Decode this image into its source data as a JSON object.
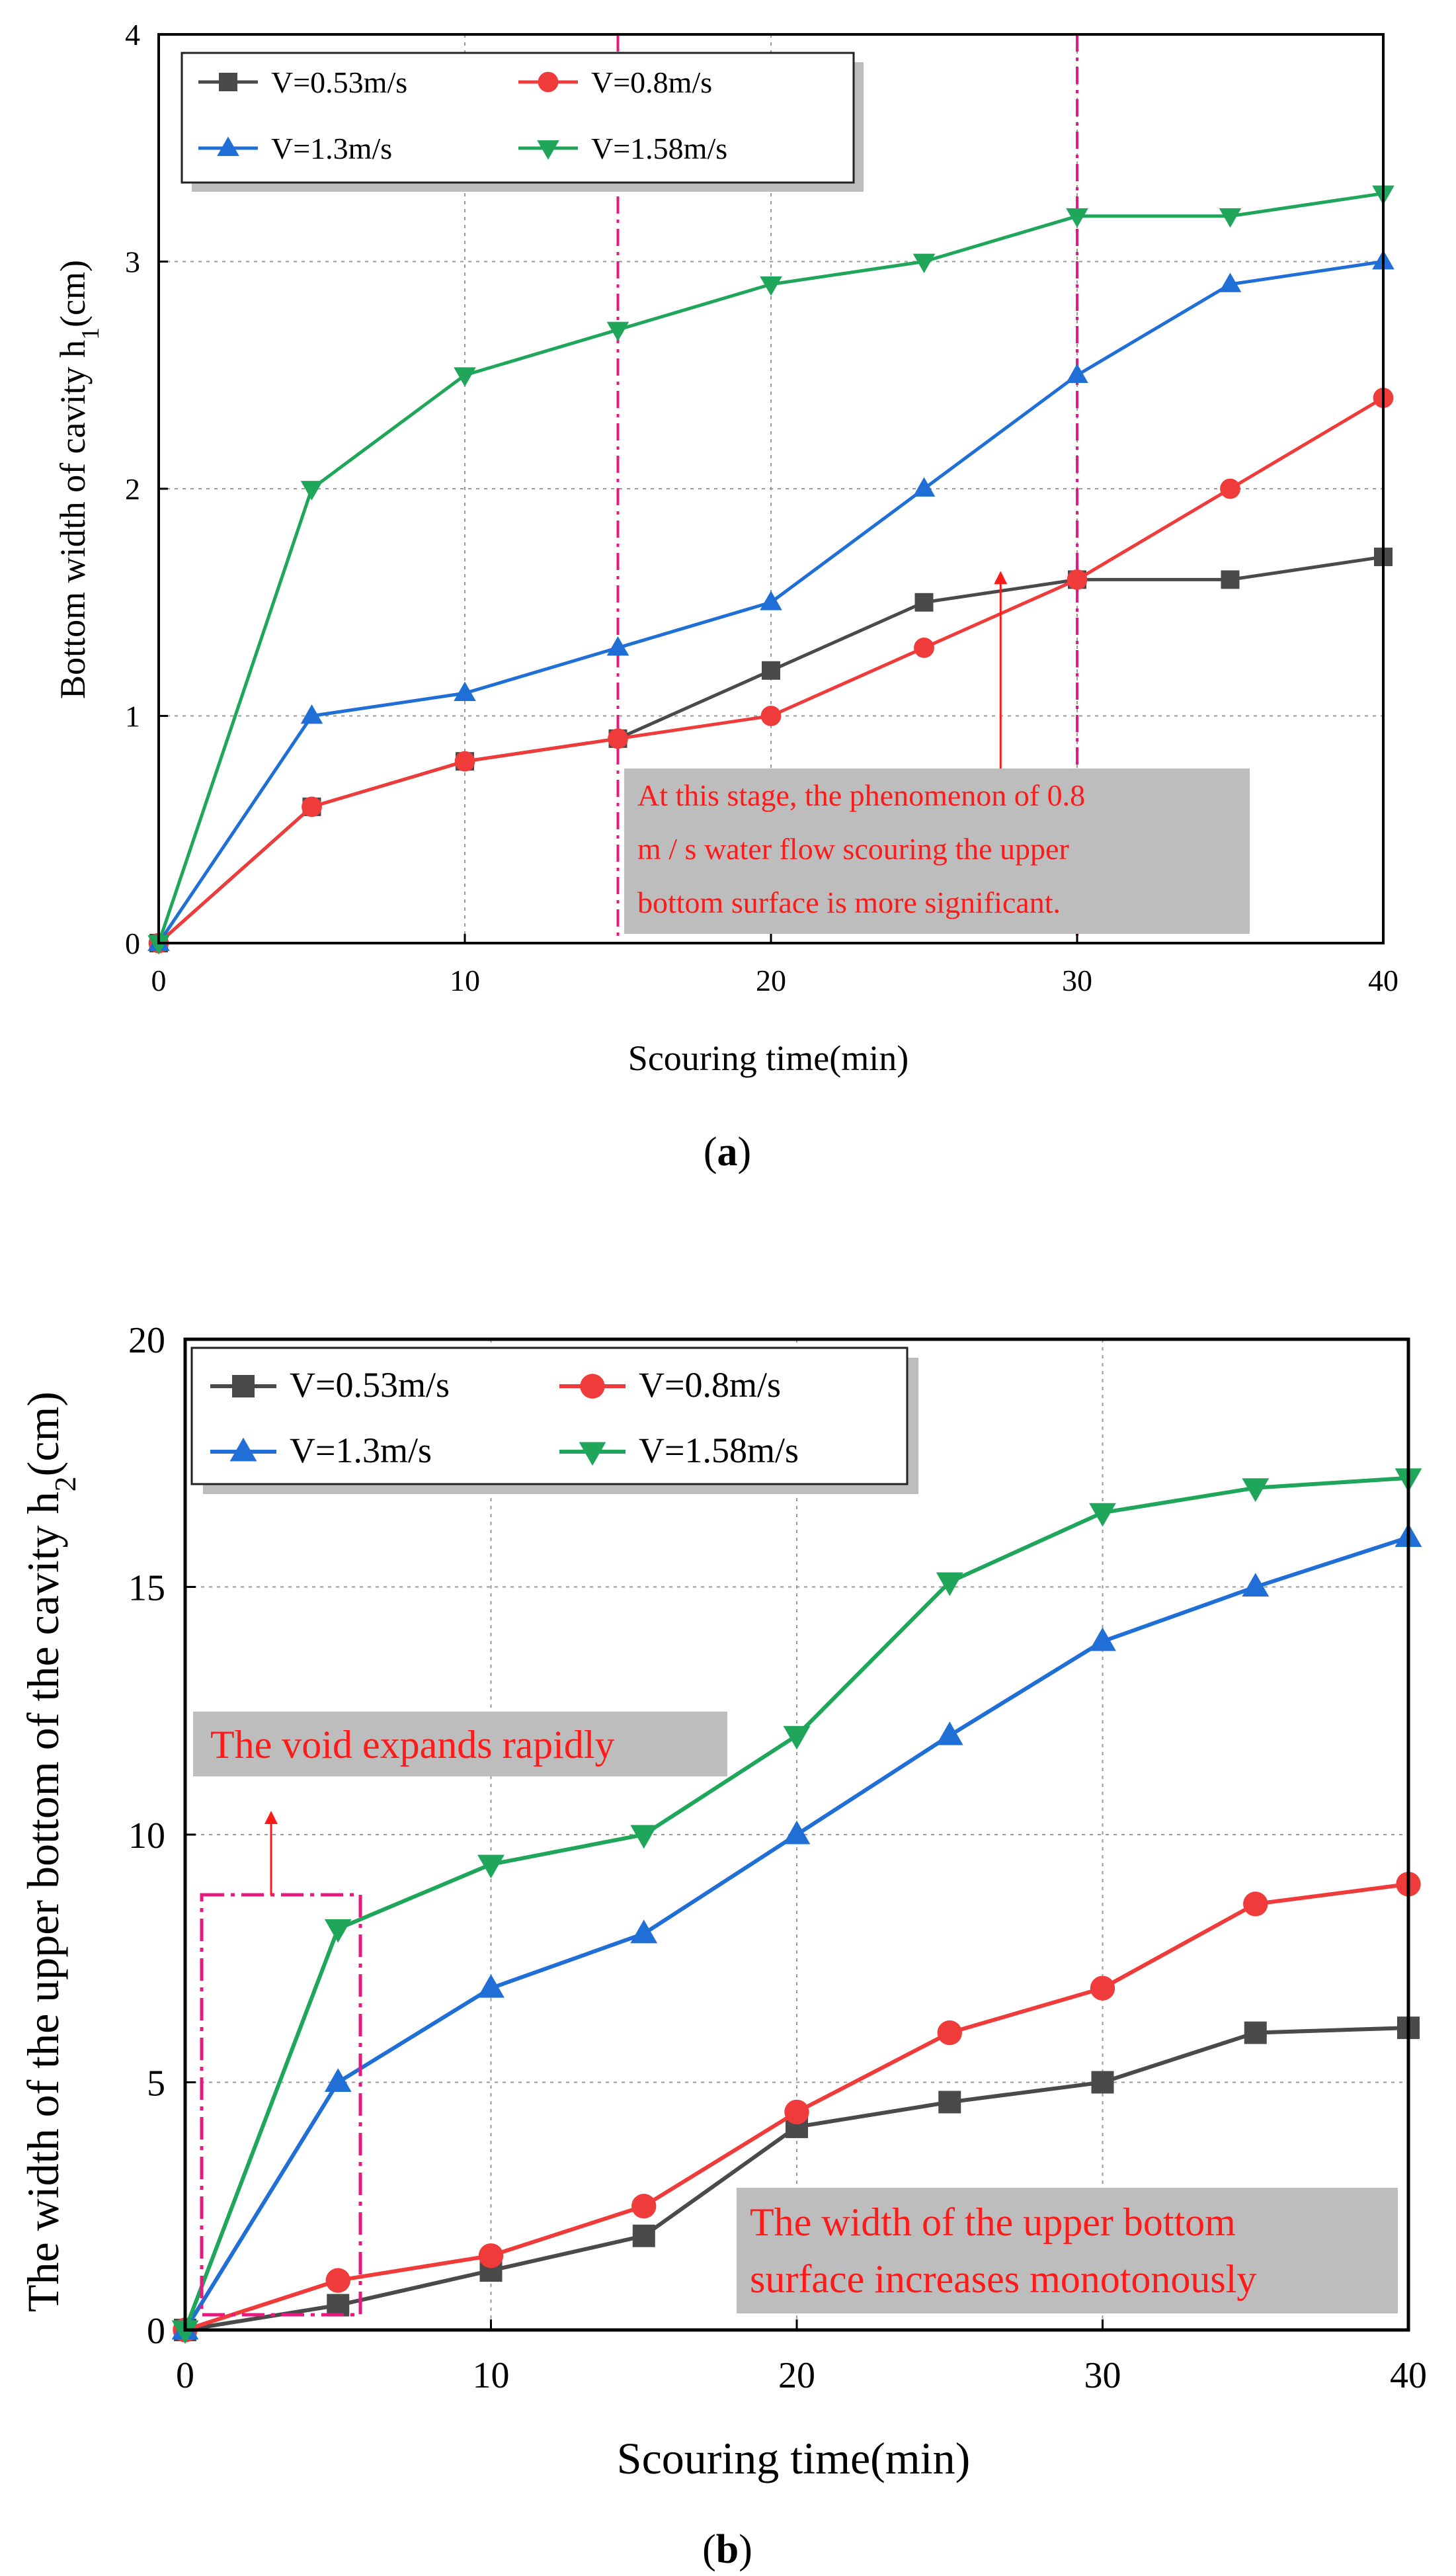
{
  "chart_data": [
    {
      "type": "line",
      "id": "a",
      "caption_letter": "a",
      "caption_open": "(",
      "caption_close": ")",
      "title": "",
      "xlabel": "Scouring time(min)",
      "ylabel": "Bottom width of cavity h1(cm)",
      "ylabel_main": "Bottom width of cavity h",
      "ylabel_sub": "1",
      "ylabel_unit": "(cm)",
      "xlim": [
        0,
        40
      ],
      "ylim": [
        0,
        4
      ],
      "xticks": [
        0,
        10,
        20,
        30,
        40
      ],
      "yticks": [
        0,
        1,
        2,
        3,
        4
      ],
      "grid": true,
      "x": [
        0,
        5,
        10,
        15,
        20,
        25,
        30,
        35,
        40
      ],
      "series": [
        {
          "name": "V=0.53m/s",
          "color": "#4a4a4a",
          "marker": "square",
          "values": [
            0,
            0.6,
            0.8,
            0.9,
            1.2,
            1.5,
            1.6,
            1.6,
            1.7
          ]
        },
        {
          "name": "V=0.8m/s",
          "color": "#f03b3b",
          "marker": "circle",
          "values": [
            0,
            0.6,
            0.8,
            0.9,
            1.0,
            1.3,
            1.6,
            2.0,
            2.4
          ]
        },
        {
          "name": "V=1.3m/s",
          "color": "#1f6fd6",
          "marker": "triangle-up",
          "values": [
            0,
            1.0,
            1.1,
            1.3,
            1.5,
            2.0,
            2.5,
            2.9,
            3.0
          ]
        },
        {
          "name": "V=1.58m/s",
          "color": "#1fa65a",
          "marker": "triangle-down",
          "values": [
            0,
            2.0,
            2.5,
            2.7,
            2.9,
            3.0,
            3.2,
            3.2,
            3.3
          ]
        }
      ],
      "vlines": [
        15,
        30
      ],
      "vline_color": "#e8187f",
      "annotation": {
        "lines": [
          "At this stage, the phenomenon of 0.8",
          "m / s water flow scouring the upper",
          "bottom surface is more significant."
        ],
        "arrow_x": 27.5,
        "arrow_y": 1.65,
        "color": "#ff1a1a"
      }
    },
    {
      "type": "line",
      "id": "b",
      "caption_letter": "b",
      "caption_open": "(",
      "caption_close": ")",
      "title": "",
      "xlabel": "Scouring time(min)",
      "ylabel": "The width of the upper bottom of the cavity h2(cm)",
      "ylabel_main": "The width of the upper bottom of the cavity h",
      "ylabel_sub": "2",
      "ylabel_unit": "(cm)",
      "xlim": [
        0,
        40
      ],
      "ylim": [
        0,
        20
      ],
      "xticks": [
        0,
        10,
        20,
        30,
        40
      ],
      "yticks": [
        0,
        5,
        10,
        15,
        20
      ],
      "grid": true,
      "x": [
        0,
        5,
        10,
        15,
        20,
        25,
        30,
        35,
        40
      ],
      "series": [
        {
          "name": "V=0.53m/s",
          "color": "#4a4a4a",
          "marker": "square",
          "values": [
            0,
            0.5,
            1.2,
            1.9,
            4.1,
            4.6,
            5.0,
            6.0,
            6.1
          ]
        },
        {
          "name": "V=0.8m/s",
          "color": "#f03b3b",
          "marker": "circle",
          "values": [
            0,
            1.0,
            1.5,
            2.5,
            4.4,
            6.0,
            6.9,
            8.6,
            9.0
          ]
        },
        {
          "name": "V=1.3m/s",
          "color": "#1f6fd6",
          "marker": "triangle-up",
          "values": [
            0,
            5.0,
            6.9,
            8.0,
            10.0,
            12.0,
            13.9,
            15.0,
            16.0
          ]
        },
        {
          "name": "V=1.58m/s",
          "color": "#1fa65a",
          "marker": "triangle-down",
          "values": [
            0,
            8.1,
            9.4,
            10.0,
            12.0,
            15.1,
            16.5,
            17.0,
            17.2
          ]
        }
      ],
      "box_color": "#e8187f",
      "annotations": [
        {
          "id": "void",
          "text": "The void expands rapidly"
        },
        {
          "id": "width",
          "lines": [
            "The width of the upper bottom",
            "surface increases monotonously"
          ]
        }
      ]
    }
  ]
}
